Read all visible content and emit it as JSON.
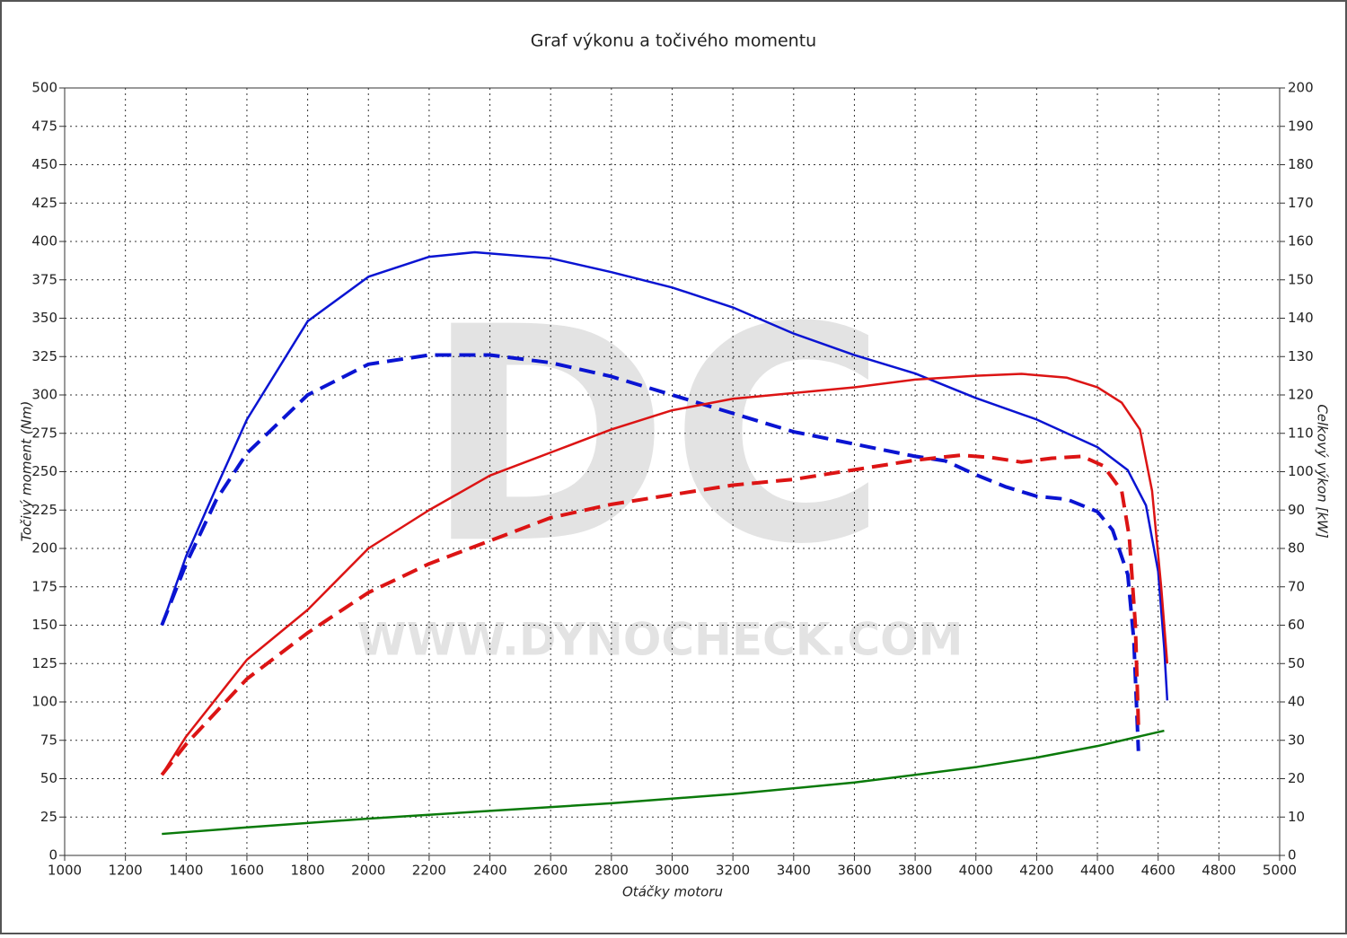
{
  "chart_data": {
    "type": "line",
    "title": "Graf výkonu a točivého momentu",
    "xlabel": "Otáčky motoru",
    "ylabel": "Točivý moment (Nm)",
    "y2label": "Celkový výkon [kW]",
    "watermark": {
      "logo": "DC",
      "url": "WWW.DYNOCHECK.COM"
    },
    "xlim": [
      1000,
      5000
    ],
    "xticks": [
      1000,
      1200,
      1400,
      1600,
      1800,
      2000,
      2200,
      2400,
      2600,
      2800,
      3000,
      3200,
      3400,
      3600,
      3800,
      4000,
      4200,
      4400,
      4600,
      4800,
      5000
    ],
    "ylim": [
      0,
      500
    ],
    "yticks": [
      0,
      25,
      50,
      75,
      100,
      125,
      150,
      175,
      200,
      225,
      250,
      275,
      300,
      325,
      350,
      375,
      400,
      425,
      450,
      475,
      500
    ],
    "y2lim": [
      0,
      200
    ],
    "y2ticks": [
      0,
      10,
      20,
      30,
      40,
      50,
      60,
      70,
      80,
      90,
      100,
      110,
      120,
      130,
      140,
      150,
      160,
      170,
      180,
      190,
      200
    ],
    "grid": true,
    "series": [
      {
        "color": "#0a14d2",
        "dashed": false,
        "axis": "y",
        "x": [
          1320,
          1400,
          1500,
          1600,
          1800,
          2000,
          2200,
          2350,
          2600,
          2800,
          3000,
          3200,
          3400,
          3600,
          3800,
          4000,
          4200,
          4400,
          4500,
          4560,
          4600,
          4620,
          4630
        ],
        "values": [
          150,
          195,
          240,
          284,
          348,
          377,
          390,
          393,
          389,
          380,
          370,
          357,
          340,
          326,
          314,
          298,
          284,
          266,
          251,
          228,
          185,
          135,
          101
        ]
      },
      {
        "color": "#0a14d2",
        "dashed": true,
        "axis": "y",
        "x": [
          1320,
          1400,
          1500,
          1600,
          1800,
          2000,
          2200,
          2400,
          2600,
          2800,
          3000,
          3200,
          3400,
          3600,
          3800,
          3900,
          4000,
          4100,
          4200,
          4300,
          4400,
          4450,
          4500,
          4520,
          4535
        ],
        "values": [
          150,
          190,
          232,
          262,
          300,
          320,
          326,
          326,
          321,
          312,
          300,
          288,
          276,
          268,
          260,
          257,
          248,
          240,
          234,
          232,
          224,
          212,
          183,
          140,
          68
        ]
      },
      {
        "color": "#dc1414",
        "dashed": false,
        "axis": "y2",
        "x": [
          1320,
          1400,
          1600,
          1800,
          2000,
          2200,
          2400,
          2600,
          2800,
          3000,
          3200,
          3400,
          3600,
          3800,
          4000,
          4150,
          4300,
          4400,
          4480,
          4540,
          4580,
          4610,
          4630
        ],
        "values": [
          21,
          31,
          51,
          64,
          80,
          90,
          99,
          105,
          111,
          116,
          119,
          120.5,
          122,
          124,
          125,
          125.5,
          124.5,
          122,
          118,
          111,
          95,
          70,
          50
        ]
      },
      {
        "color": "#dc1414",
        "dashed": true,
        "axis": "y2",
        "x": [
          1320,
          1400,
          1600,
          1800,
          2000,
          2200,
          2400,
          2600,
          2800,
          3000,
          3200,
          3400,
          3600,
          3800,
          3950,
          4050,
          4150,
          4250,
          4350,
          4420,
          4480,
          4505,
          4525,
          4535
        ],
        "values": [
          21,
          29,
          46,
          58,
          68.5,
          76,
          82,
          88,
          91.5,
          94,
          96.5,
          98,
          100.5,
          103,
          104.3,
          103.7,
          102.5,
          103.5,
          104,
          101.5,
          95,
          83,
          60,
          34
        ]
      },
      {
        "color": "#0a7a0a",
        "dashed": false,
        "axis": "y2",
        "x": [
          1320,
          1600,
          2000,
          2400,
          2800,
          3200,
          3600,
          4000,
          4200,
          4400,
          4620
        ],
        "values": [
          5.6,
          7.3,
          9.6,
          11.6,
          13.6,
          16,
          19,
          23,
          25.5,
          28.5,
          32.5
        ]
      }
    ]
  }
}
